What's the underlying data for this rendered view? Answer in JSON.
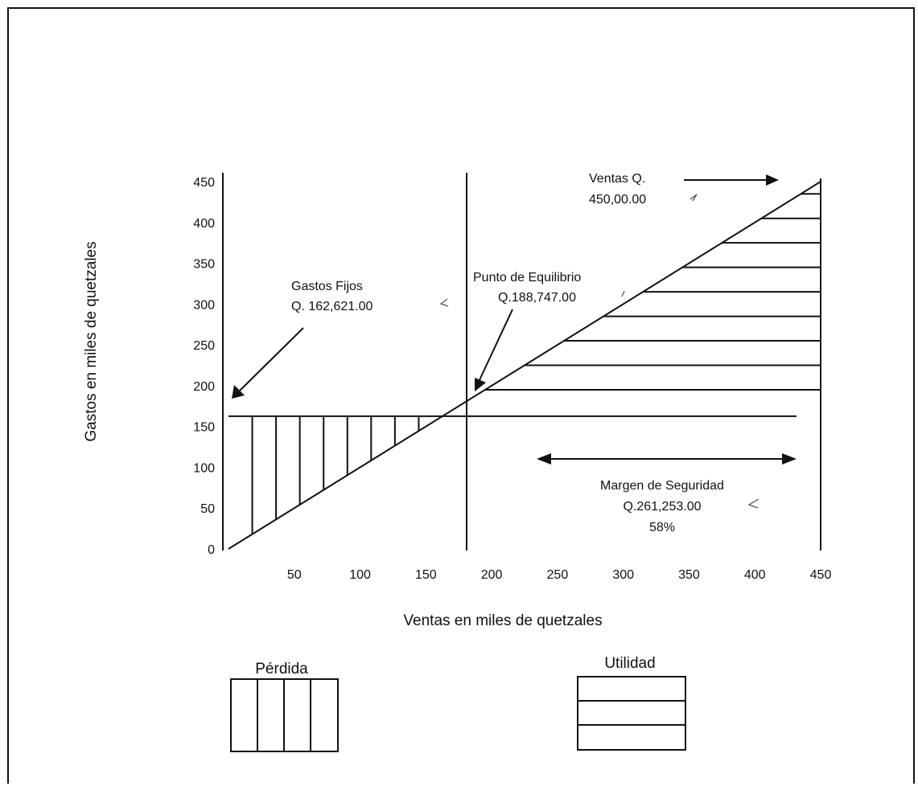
{
  "chart_data": {
    "type": "line",
    "title": "",
    "xlabel": "Ventas en miles de quetzales",
    "ylabel": "Gastos en miles de quetzales",
    "x_ticks": [
      50,
      100,
      150,
      200,
      250,
      300,
      350,
      400,
      450
    ],
    "y_ticks": [
      0,
      50,
      100,
      150,
      200,
      250,
      300,
      350,
      400,
      450
    ],
    "xlim": [
      0,
      450
    ],
    "ylim": [
      0,
      450
    ],
    "series": [
      {
        "key": "ventas",
        "x": [
          0,
          450
        ],
        "y": [
          0,
          450
        ]
      },
      {
        "key": "gastos_fijos",
        "x": [
          0,
          450
        ],
        "y": [
          162.621,
          162.621
        ]
      }
    ],
    "break_even_x": 188.747,
    "annotations": {
      "ventas": {
        "line1": "Ventas Q.",
        "line2": "450,00.00"
      },
      "gastos_fijos": {
        "line1": "Gastos Fijos",
        "line2": "Q. 162,621.00"
      },
      "punto_equilibrio": {
        "line1": "Punto de Equilibrio",
        "line2": "Q.188,747.00"
      },
      "margen_seguridad": {
        "line1": "Margen de Seguridad",
        "line2": "Q.261,253.00",
        "line3": "58%"
      }
    },
    "legend": {
      "perdida": "Pérdida",
      "utilidad": "Utilidad"
    }
  }
}
